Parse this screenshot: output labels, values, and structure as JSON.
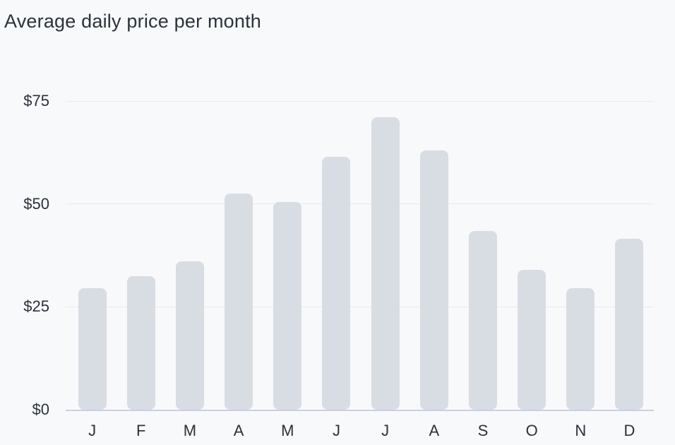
{
  "page": {
    "background_color": "#f8f9fb"
  },
  "chart_data": {
    "type": "bar",
    "title": "Average daily price per month",
    "categories": [
      "J",
      "F",
      "M",
      "A",
      "M",
      "J",
      "J",
      "A",
      "S",
      "O",
      "N",
      "D"
    ],
    "values": [
      29.5,
      32.5,
      36,
      52.5,
      50.5,
      61.5,
      71,
      63,
      43.5,
      34,
      29.5,
      41.5
    ],
    "xlabel": "",
    "ylabel": "",
    "ylim": [
      0,
      75
    ],
    "yticks": [
      0,
      25,
      50,
      75
    ],
    "ytick_labels": [
      "$0",
      "$25",
      "$50",
      "$75"
    ],
    "grid": true,
    "legend": false,
    "colors": {
      "bar": "#d8dde4",
      "gridline": "#e8eaf1",
      "axis_line": "#c9d0e2",
      "text": "#2b323b",
      "background": "#f8f9fb"
    }
  }
}
